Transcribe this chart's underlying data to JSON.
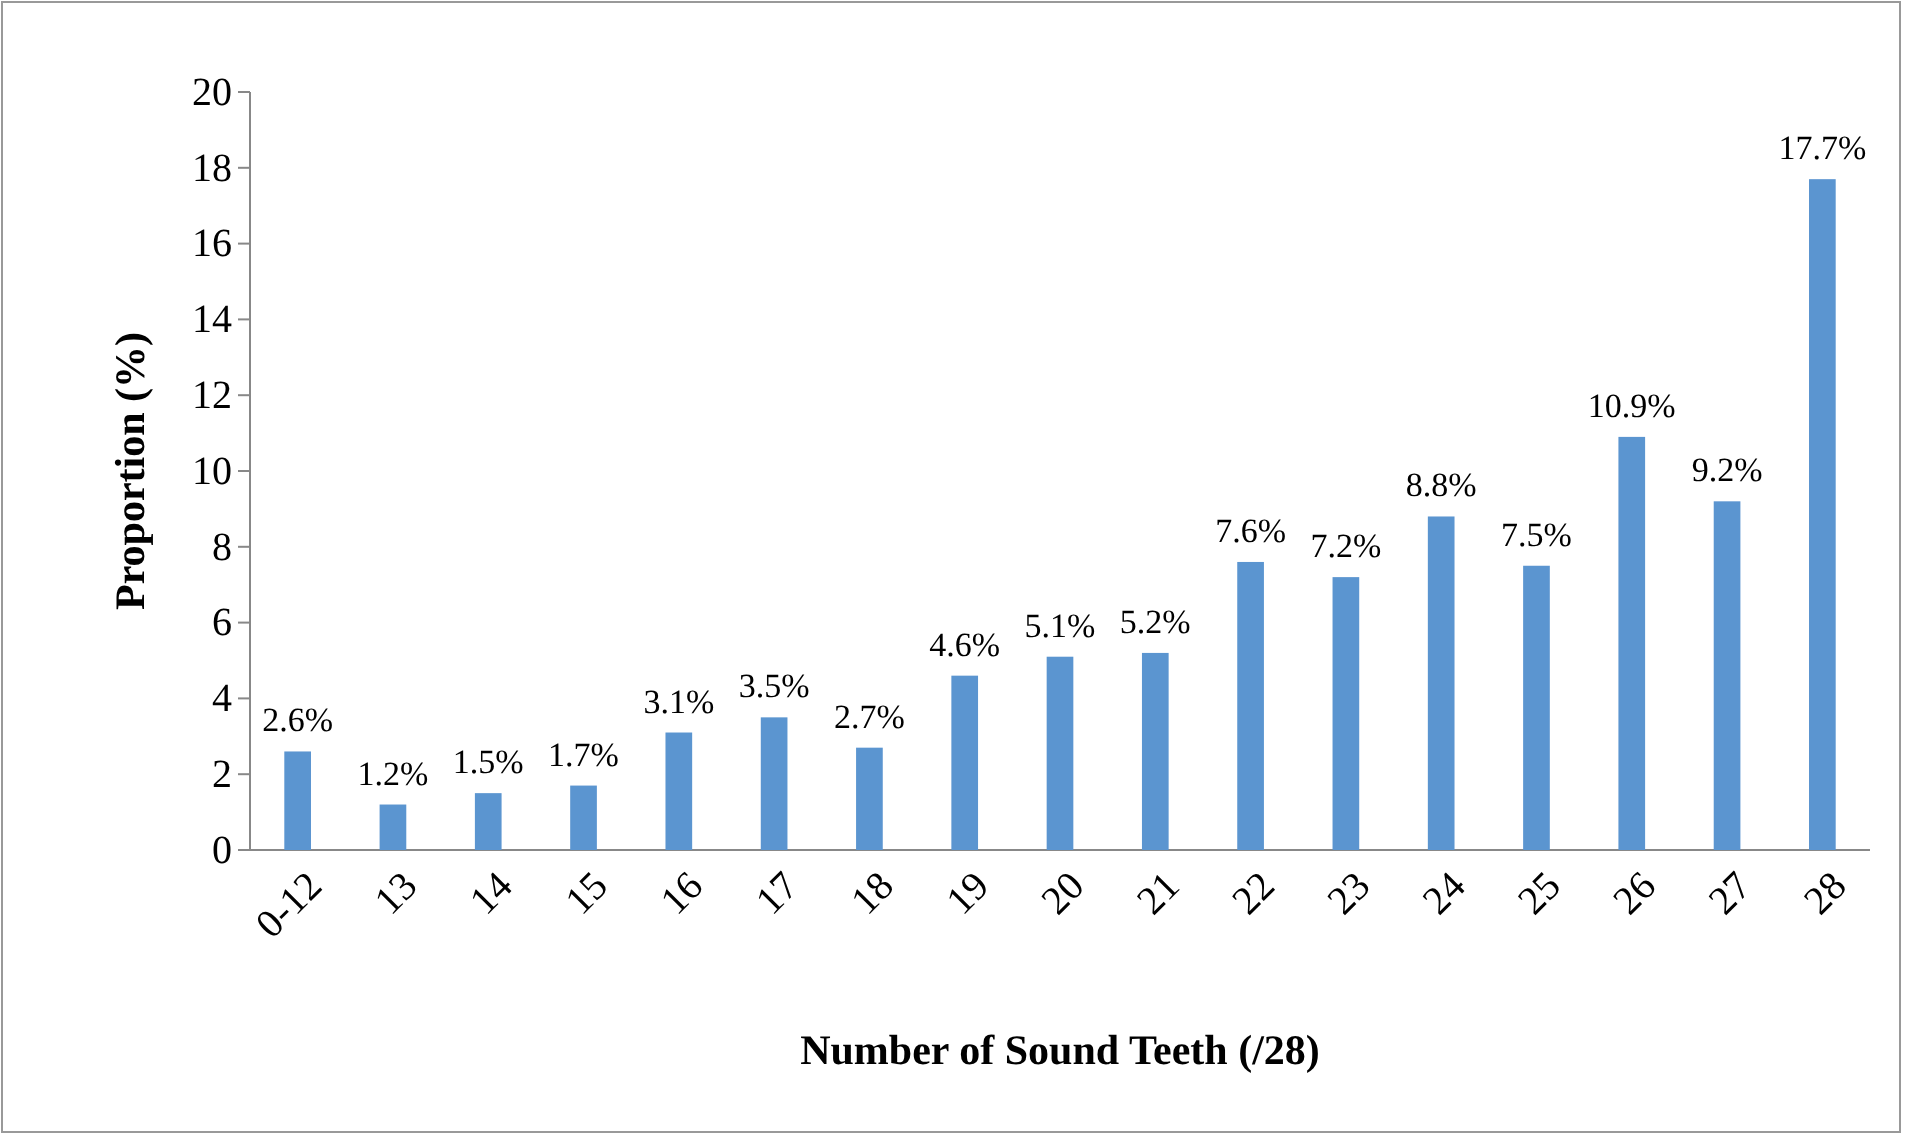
{
  "chart_data": {
    "type": "bar",
    "xlabel": "Number of Sound Teeth (/28)",
    "ylabel": "Proportion (%)",
    "categories": [
      "0-12",
      "13",
      "14",
      "15",
      "16",
      "17",
      "18",
      "19",
      "20",
      "21",
      "22",
      "23",
      "24",
      "25",
      "26",
      "27",
      "28"
    ],
    "values": [
      2.6,
      1.2,
      1.5,
      1.7,
      3.1,
      3.5,
      2.7,
      4.6,
      5.1,
      5.2,
      7.6,
      7.2,
      8.8,
      7.5,
      10.9,
      9.2,
      17.7
    ],
    "value_labels": [
      "2.6%",
      "1.2%",
      "1.5%",
      "1.7%",
      "3.1%",
      "3.5%",
      "2.7%",
      "4.6%",
      "5.1%",
      "5.2%",
      "7.6%",
      "7.2%",
      "8.8%",
      "7.5%",
      "10.9%",
      "9.2%",
      "17.7%"
    ],
    "color": "#5b95d0",
    "ylim": [
      0,
      20
    ],
    "yticks": [
      0,
      2,
      4,
      6,
      8,
      10,
      12,
      14,
      16,
      18,
      20
    ],
    "grid": false
  }
}
